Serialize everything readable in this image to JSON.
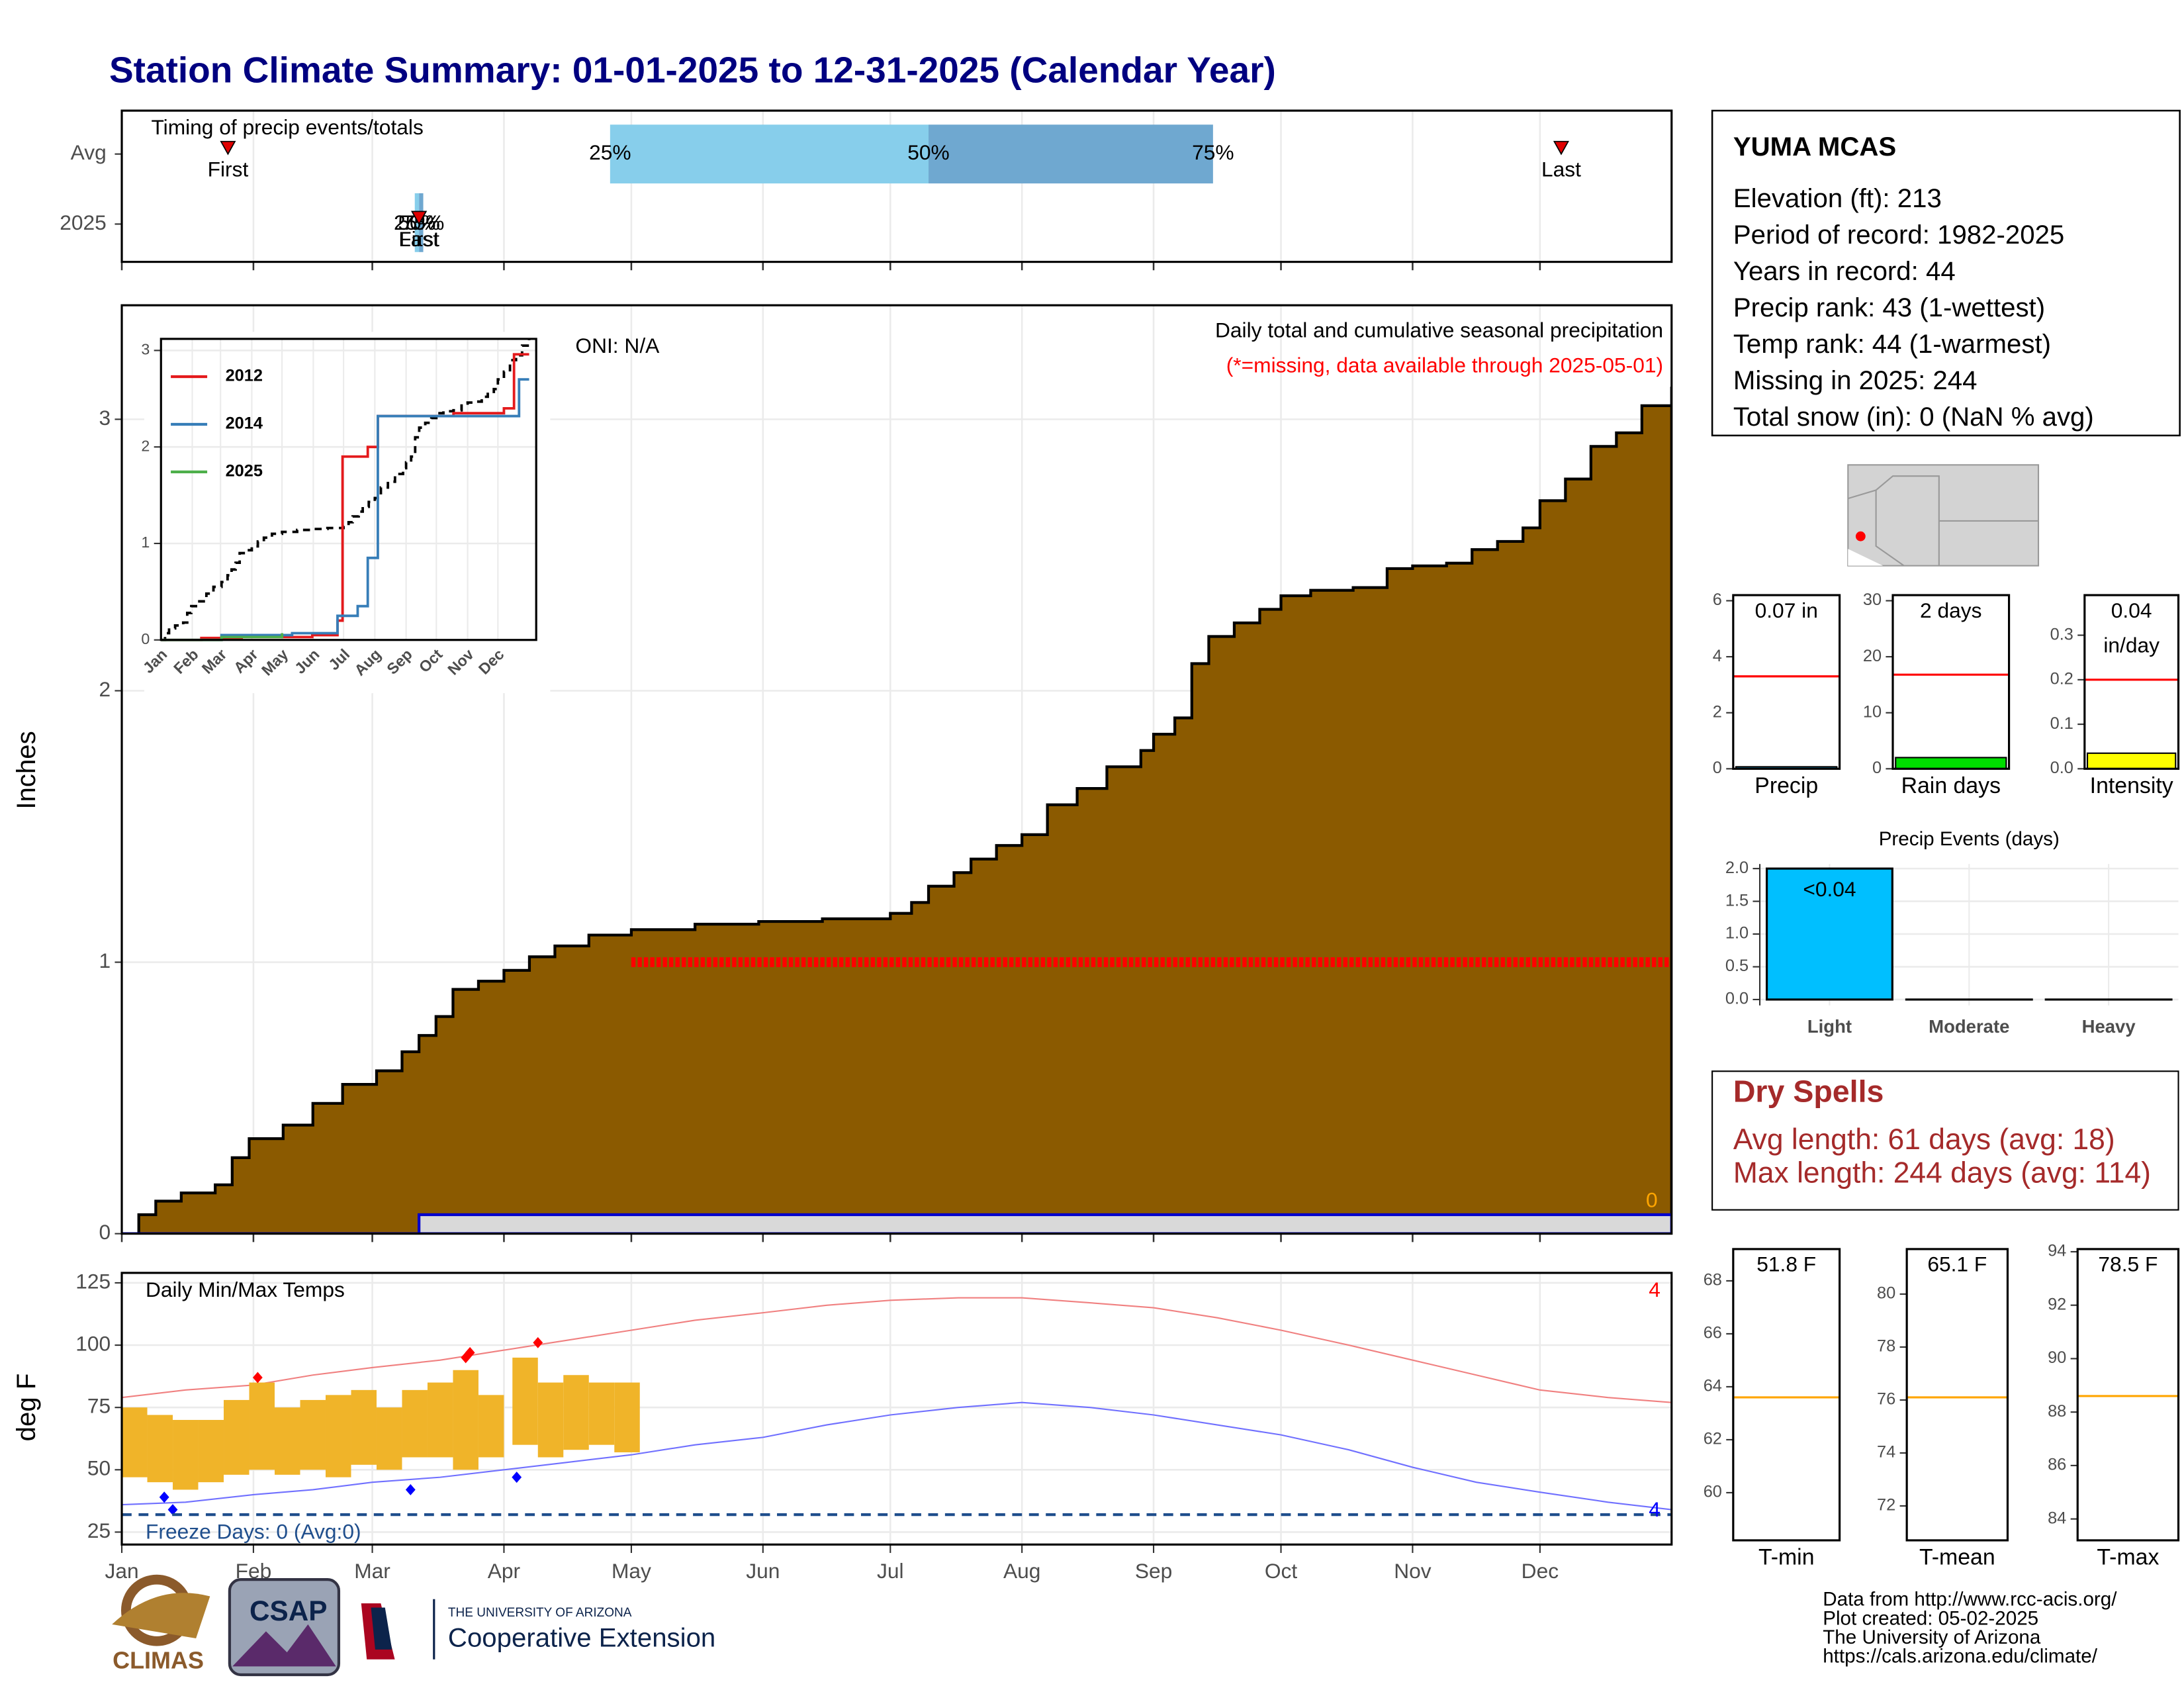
{
  "title": "Station Climate Summary: 01-01-2025 to 12-31-2025 (Calendar Year)",
  "station": {
    "name": "YUMA MCAS",
    "lines": [
      "Elevation (ft): 213",
      "Period of record: 1982-2025",
      "Years in record: 44",
      "Precip rank: 43 (1-wettest)",
      "Temp rank: 44 (1-warmest)",
      "Missing in 2025: 244",
      "Total snow (in): 0 (NaN % avg)"
    ]
  },
  "dry_spells": {
    "title": "Dry Spells",
    "lines": [
      "Avg length: 61 days (avg: 18)",
      "Max length: 244 days (avg: 114)"
    ]
  },
  "footer": {
    "logos": [
      "CLIMAS",
      "CSAP",
      "THE UNIVERSITY OF ARIZONA",
      "Cooperative Extension"
    ],
    "lines": [
      "Data from http://www.rcc-acis.org/",
      "Plot created: 05-02-2025",
      "The University of Arizona",
      "https://cals.arizona.edu/climate/"
    ]
  },
  "chart_data": [
    {
      "type": "timing",
      "title": "Timing of precip events/totals",
      "categories": [
        "Avg",
        "2025"
      ],
      "xlim": [
        0,
        365
      ],
      "xticks": [
        0,
        31,
        59,
        90,
        120,
        151,
        181,
        212,
        243,
        273,
        304,
        334
      ],
      "series": [
        {
          "first": 25,
          "last": 339,
          "quartiles": [
            115,
            190,
            257
          ]
        },
        {
          "first": 70,
          "last": 70,
          "quartiles": [
            69,
            70,
            71
          ]
        }
      ],
      "quartile_labels": [
        "25%",
        "50%",
        "75%"
      ],
      "first_label": "First",
      "last_label": "Last",
      "colors": [
        "#87ceeb",
        "#6fa8d0"
      ],
      "marker_color": "#e00000"
    },
    {
      "type": "area-step",
      "ylabel": "Inches",
      "subtitle": "Daily total and cumulative seasonal precipitation",
      "note": "(*=missing, data available through 2025-05-01)",
      "annotation": "ONI: N/A",
      "count": 0,
      "xlim": [
        0,
        365
      ],
      "xticks": [
        0,
        31,
        59,
        90,
        120,
        151,
        181,
        212,
        243,
        273,
        304,
        334
      ],
      "ylim": [
        0,
        3.42
      ],
      "yticks": [
        0,
        1,
        2,
        3
      ],
      "series": [
        {
          "color": "#8b5a00",
          "x": [
            0,
            4,
            8,
            14,
            22,
            26,
            30,
            38,
            45,
            52,
            60,
            66,
            70,
            74,
            78,
            84,
            90,
            96,
            102,
            110,
            120,
            135,
            150,
            165,
            181,
            186,
            190,
            196,
            200,
            206,
            212,
            218,
            225,
            232,
            240,
            243,
            248,
            252,
            256,
            262,
            268,
            273,
            280,
            290,
            298,
            304,
            312,
            318,
            324,
            330,
            334,
            340,
            346,
            352,
            358,
            365
          ],
          "values": [
            0,
            0.07,
            0.12,
            0.15,
            0.18,
            0.28,
            0.35,
            0.4,
            0.48,
            0.55,
            0.6,
            0.67,
            0.73,
            0.8,
            0.9,
            0.93,
            0.97,
            1.02,
            1.06,
            1.1,
            1.12,
            1.14,
            1.15,
            1.16,
            1.18,
            1.22,
            1.28,
            1.33,
            1.38,
            1.43,
            1.47,
            1.58,
            1.64,
            1.72,
            1.78,
            1.84,
            1.9,
            2.1,
            2.2,
            2.25,
            2.3,
            2.35,
            2.37,
            2.38,
            2.45,
            2.46,
            2.47,
            2.52,
            2.55,
            2.6,
            2.7,
            2.78,
            2.9,
            2.95,
            3.05,
            3.12
          ]
        },
        {
          "color": "#0000cd",
          "x": [
            0,
            70,
            365
          ],
          "values": [
            0,
            0.07,
            0.07
          ]
        },
        {
          "color": "#ff0000",
          "x": [
            120,
            365
          ],
          "values": [
            1,
            1
          ]
        }
      ]
    },
    {
      "type": "line-step",
      "xlim": [
        0,
        372
      ],
      "ylim": [
        0,
        3.12
      ],
      "yticks": [
        0,
        1,
        2,
        3
      ],
      "xticks": [
        {
          "value": 0,
          "label": "Jan"
        },
        {
          "value": 31,
          "label": "Feb"
        },
        {
          "value": 59,
          "label": "Mar"
        },
        {
          "value": 90,
          "label": "Apr"
        },
        {
          "value": 120,
          "label": "May"
        },
        {
          "value": 151,
          "label": "Jun"
        },
        {
          "value": 181,
          "label": "Jul"
        },
        {
          "value": 212,
          "label": "Aug"
        },
        {
          "value": 243,
          "label": "Sep"
        },
        {
          "value": 273,
          "label": "Oct"
        },
        {
          "value": 304,
          "label": "Nov"
        },
        {
          "value": 334,
          "label": "Dec"
        }
      ],
      "series": [
        {
          "name": "2012",
          "color": "#e41a1c",
          "x": [
            0,
            40,
            80,
            150,
            175,
            180,
            205,
            215,
            290,
            340,
            350,
            365
          ],
          "values": [
            0,
            0.02,
            0.03,
            0.05,
            0.2,
            1.9,
            2.0,
            2.32,
            2.35,
            2.4,
            2.96,
            2.96
          ]
        },
        {
          "name": "2014",
          "color": "#377eb8",
          "x": [
            0,
            60,
            130,
            175,
            195,
            205,
            215,
            350,
            355,
            365
          ],
          "values": [
            0,
            0.05,
            0.07,
            0.25,
            0.35,
            0.85,
            2.32,
            2.32,
            2.7,
            2.7
          ]
        },
        {
          "name": "2025",
          "color": "#4daf4a",
          "x": [
            0,
            60,
            120
          ],
          "values": [
            0,
            0.03,
            0.07
          ]
        }
      ]
    },
    {
      "type": "temp-range",
      "title": "Daily Min/Max Temps",
      "ylabel": "deg F",
      "xlim": [
        0,
        365
      ],
      "ylim": [
        20,
        129
      ],
      "yticks": [
        25,
        50,
        75,
        100,
        125
      ],
      "xticks": [
        {
          "value": 0,
          "label": "Jan"
        },
        {
          "value": 31,
          "label": "Feb"
        },
        {
          "value": 59,
          "label": "Mar"
        },
        {
          "value": 90,
          "label": "Apr"
        },
        {
          "value": 120,
          "label": "May"
        },
        {
          "value": 151,
          "label": "Jun"
        },
        {
          "value": 181,
          "label": "Jul"
        },
        {
          "value": 212,
          "label": "Aug"
        },
        {
          "value": 243,
          "label": "Sep"
        },
        {
          "value": 273,
          "label": "Oct"
        },
        {
          "value": 304,
          "label": "Nov"
        },
        {
          "value": 334,
          "label": "Dec"
        }
      ],
      "avg_max": {
        "color": "#f08080",
        "x": [
          0,
          15,
          31,
          45,
          59,
          75,
          90,
          105,
          120,
          135,
          151,
          166,
          181,
          197,
          212,
          228,
          243,
          258,
          273,
          289,
          304,
          319,
          334,
          350,
          365
        ],
        "values": [
          79,
          82,
          84,
          88,
          91,
          94,
          98,
          102,
          106,
          110,
          113,
          116,
          118,
          119,
          119,
          117,
          115,
          111,
          106,
          100,
          94,
          88,
          82,
          79,
          77
        ]
      },
      "avg_min": {
        "color": "#7070ff",
        "x": [
          0,
          15,
          31,
          45,
          59,
          75,
          90,
          105,
          120,
          135,
          151,
          166,
          181,
          197,
          212,
          228,
          243,
          258,
          273,
          289,
          304,
          319,
          334,
          350,
          365
        ],
        "values": [
          36,
          37,
          40,
          42,
          45,
          47,
          50,
          53,
          56,
          60,
          63,
          68,
          72,
          75,
          77,
          75,
          72,
          68,
          64,
          58,
          51,
          45,
          41,
          37,
          34
        ]
      },
      "bars": {
        "color": "#f0b429",
        "x": [
          0,
          6,
          12,
          18,
          24,
          30,
          36,
          42,
          48,
          54,
          60,
          66,
          72,
          78,
          84,
          92,
          98,
          104,
          110,
          116
        ],
        "min": [
          47,
          45,
          42,
          45,
          48,
          50,
          48,
          50,
          47,
          52,
          50,
          55,
          55,
          50,
          55,
          60,
          55,
          58,
          60,
          57
        ],
        "max": [
          75,
          72,
          70,
          70,
          78,
          85,
          75,
          78,
          80,
          82,
          75,
          82,
          85,
          90,
          80,
          95,
          85,
          88,
          85,
          85
        ]
      },
      "record_highs": {
        "color": "#ff0000",
        "x": [
          32,
          81,
          82,
          98
        ],
        "values": [
          87,
          95,
          97,
          101
        ]
      },
      "record_lows": {
        "color": "#0000ff",
        "x": [
          10,
          12,
          68,
          93
        ],
        "values": [
          39,
          34,
          42,
          47
        ]
      },
      "freeze": {
        "value": 32,
        "label": "Freeze Days: 0 (Avg:0)",
        "color": "#1f4e8c"
      },
      "high_count": 4,
      "low_count": 4
    },
    {
      "type": "gauge",
      "xlabel": "Precip",
      "value": 0.07,
      "value_label": [
        "0.07 in"
      ],
      "avg": 3.3,
      "color": "#00bfff",
      "avg_color": "#ff0000",
      "ylim": [
        0,
        6.2
      ],
      "yticks": [
        0,
        2,
        4,
        6
      ]
    },
    {
      "type": "gauge",
      "xlabel": "Rain days",
      "value": 2,
      "value_label": [
        "2 days"
      ],
      "avg": 16.8,
      "color": "#00dd00",
      "avg_color": "#ff0000",
      "ylim": [
        0,
        31
      ],
      "yticks": [
        0,
        10,
        20,
        30
      ]
    },
    {
      "type": "gauge",
      "xlabel": "Intensity",
      "value": 0.035,
      "value_label": [
        "0.04",
        "in/day"
      ],
      "avg": 0.2,
      "color": "#ffff00",
      "avg_color": "#ff0000",
      "ylim": [
        0,
        0.39
      ],
      "yticks": [
        {
          "value": 0,
          "label": "0.0"
        },
        {
          "value": 0.1,
          "label": "0.1"
        },
        {
          "value": 0.2,
          "label": "0.2"
        },
        {
          "value": 0.3,
          "label": "0.3"
        }
      ]
    },
    {
      "type": "bar",
      "title": "Precip Events (days)",
      "categories": [
        "Light",
        "Moderate",
        "Heavy"
      ],
      "values": [
        2,
        0,
        0
      ],
      "annotation": "<0.04",
      "color": "#00bfff",
      "ylim": [
        -0.09,
        2.07
      ],
      "yticks": [
        {
          "value": 0,
          "label": "0.0"
        },
        {
          "value": 0.5,
          "label": "0.5"
        },
        {
          "value": 1,
          "label": "1.0"
        },
        {
          "value": 1.5,
          "label": "1.5"
        },
        {
          "value": 2,
          "label": "2.0"
        }
      ]
    },
    {
      "type": "gauge",
      "xlabel": "T-min",
      "value": 51.8,
      "value_label": [
        "51.8 F"
      ],
      "avg": 63.6,
      "color": "#ffa500",
      "avg_color": "#ffa500",
      "ylim": [
        58.2,
        69.2
      ],
      "yticks": [
        60,
        62,
        64,
        66,
        68
      ]
    },
    {
      "type": "gauge",
      "xlabel": "T-mean",
      "value": 65.1,
      "value_label": [
        "65.1 F"
      ],
      "avg": 76.1,
      "color": "#ffa500",
      "avg_color": "#ffa500",
      "ylim": [
        70.7,
        81.7
      ],
      "yticks": [
        72,
        74,
        76,
        78,
        80
      ]
    },
    {
      "type": "gauge",
      "xlabel": "T-max",
      "value": 78.5,
      "value_label": [
        "78.5 F"
      ],
      "avg": 88.6,
      "color": "#ffa500",
      "avg_color": "#ffa500",
      "ylim": [
        83.2,
        94.1
      ],
      "yticks": [
        84,
        86,
        88,
        90,
        92,
        94
      ]
    }
  ]
}
